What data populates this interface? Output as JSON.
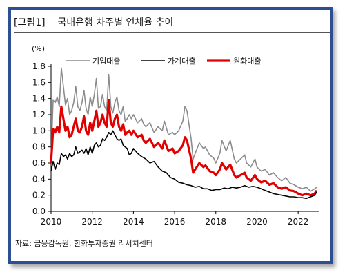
{
  "header": {
    "figure_tag": "[그림1]",
    "title": "국내은행 차주별 연체율 추이"
  },
  "source": "자료: 금융감독원, 한화투자증권 리서치센터",
  "chart_data": {
    "type": "line",
    "title": "국내은행 차주별 연체율 추이",
    "unit_label": "(%)",
    "xlim": [
      2010,
      2023
    ],
    "ylim": [
      0.0,
      1.8
    ],
    "x_ticks": [
      2010,
      2012,
      2014,
      2016,
      2018,
      2020,
      2022
    ],
    "y_ticks": [
      "0.0",
      "0.2",
      "0.4",
      "0.6",
      "0.8",
      "1.0",
      "1.2",
      "1.4",
      "1.6",
      "1.8"
    ],
    "grid": false,
    "legend_position": "top",
    "series": [
      {
        "name": "기업대출",
        "color": "#8c8c8c",
        "x": [
          2010.0,
          2010.1,
          2010.2,
          2010.3,
          2010.4,
          2010.5,
          2010.6,
          2010.7,
          2010.8,
          2010.9,
          2011.0,
          2011.1,
          2011.2,
          2011.3,
          2011.4,
          2011.5,
          2011.6,
          2011.7,
          2011.8,
          2011.9,
          2012.0,
          2012.1,
          2012.2,
          2012.3,
          2012.4,
          2012.5,
          2012.6,
          2012.7,
          2012.8,
          2012.9,
          2013.0,
          2013.1,
          2013.2,
          2013.3,
          2013.4,
          2013.5,
          2013.6,
          2013.7,
          2013.8,
          2013.9,
          2014.0,
          2014.2,
          2014.4,
          2014.5,
          2014.6,
          2014.8,
          2015.0,
          2015.2,
          2015.4,
          2015.5,
          2015.7,
          2015.9,
          2016.0,
          2016.2,
          2016.4,
          2016.5,
          2016.6,
          2016.8,
          2016.9,
          2017.0,
          2017.2,
          2017.4,
          2017.5,
          2017.7,
          2017.9,
          2018.0,
          2018.2,
          2018.3,
          2018.5,
          2018.7,
          2018.9,
          2019.0,
          2019.2,
          2019.4,
          2019.5,
          2019.7,
          2019.9,
          2020.0,
          2020.2,
          2020.4,
          2020.6,
          2020.8,
          2021.0,
          2021.2,
          2021.4,
          2021.6,
          2021.8,
          2022.0,
          2022.2,
          2022.4,
          2022.6,
          2022.8,
          2022.9
        ],
        "y": [
          0.65,
          1.38,
          1.35,
          1.42,
          1.3,
          1.78,
          1.55,
          1.32,
          1.4,
          1.2,
          1.25,
          1.35,
          1.55,
          1.3,
          1.25,
          1.35,
          1.5,
          1.28,
          1.2,
          1.42,
          1.3,
          1.45,
          1.65,
          1.28,
          1.3,
          1.45,
          1.3,
          1.25,
          1.7,
          1.3,
          1.22,
          1.35,
          1.42,
          1.25,
          1.2,
          1.3,
          1.12,
          1.15,
          1.2,
          1.15,
          1.2,
          1.1,
          1.15,
          1.08,
          1.05,
          1.1,
          0.98,
          1.05,
          1.0,
          1.12,
          0.95,
          0.98,
          0.95,
          1.0,
          1.12,
          1.3,
          1.25,
          0.9,
          0.65,
          0.72,
          0.85,
          0.78,
          0.8,
          0.7,
          0.66,
          0.6,
          0.72,
          0.88,
          0.75,
          0.88,
          0.65,
          0.6,
          0.65,
          0.7,
          0.6,
          0.55,
          0.65,
          0.55,
          0.5,
          0.52,
          0.45,
          0.48,
          0.42,
          0.38,
          0.42,
          0.35,
          0.33,
          0.3,
          0.28,
          0.3,
          0.25,
          0.28,
          0.3
        ]
      },
      {
        "name": "가계대출",
        "color": "#000000",
        "x": [
          2010.0,
          2010.1,
          2010.2,
          2010.3,
          2010.4,
          2010.5,
          2010.6,
          2010.7,
          2010.8,
          2010.9,
          2011.0,
          2011.1,
          2011.2,
          2011.3,
          2011.4,
          2011.5,
          2011.6,
          2011.7,
          2011.8,
          2011.9,
          2012.0,
          2012.1,
          2012.2,
          2012.3,
          2012.4,
          2012.5,
          2012.6,
          2012.7,
          2012.8,
          2012.9,
          2013.0,
          2013.1,
          2013.2,
          2013.3,
          2013.4,
          2013.5,
          2013.6,
          2013.7,
          2013.8,
          2013.9,
          2014.0,
          2014.2,
          2014.4,
          2014.6,
          2014.8,
          2015.0,
          2015.2,
          2015.4,
          2015.6,
          2015.8,
          2016.0,
          2016.2,
          2016.4,
          2016.6,
          2016.8,
          2017.0,
          2017.2,
          2017.4,
          2017.6,
          2017.8,
          2018.0,
          2018.2,
          2018.4,
          2018.6,
          2018.8,
          2019.0,
          2019.2,
          2019.4,
          2019.6,
          2019.8,
          2020.0,
          2020.2,
          2020.4,
          2020.6,
          2020.8,
          2021.0,
          2021.2,
          2021.4,
          2021.6,
          2021.8,
          2022.0,
          2022.2,
          2022.4,
          2022.6,
          2022.8,
          2022.9
        ],
        "y": [
          0.5,
          0.62,
          0.52,
          0.6,
          0.58,
          0.72,
          0.68,
          0.7,
          0.65,
          0.72,
          0.68,
          0.7,
          0.8,
          0.72,
          0.74,
          0.76,
          0.72,
          0.78,
          0.7,
          0.8,
          0.72,
          0.82,
          0.85,
          0.8,
          0.82,
          0.9,
          0.88,
          0.92,
          0.98,
          0.95,
          1.0,
          0.95,
          0.9,
          0.88,
          0.9,
          0.82,
          0.8,
          0.78,
          0.7,
          0.72,
          0.78,
          0.72,
          0.68,
          0.65,
          0.6,
          0.62,
          0.55,
          0.5,
          0.48,
          0.42,
          0.4,
          0.36,
          0.35,
          0.33,
          0.32,
          0.3,
          0.31,
          0.28,
          0.28,
          0.26,
          0.27,
          0.27,
          0.29,
          0.28,
          0.3,
          0.29,
          0.3,
          0.32,
          0.3,
          0.31,
          0.3,
          0.28,
          0.26,
          0.24,
          0.22,
          0.21,
          0.2,
          0.19,
          0.18,
          0.18,
          0.17,
          0.17,
          0.16,
          0.18,
          0.2,
          0.24
        ]
      },
      {
        "name": "원화대출",
        "color": "#e10000",
        "x": [
          2010.0,
          2010.1,
          2010.2,
          2010.3,
          2010.4,
          2010.5,
          2010.6,
          2010.7,
          2010.8,
          2010.9,
          2011.0,
          2011.1,
          2011.2,
          2011.3,
          2011.4,
          2011.5,
          2011.6,
          2011.7,
          2011.8,
          2011.9,
          2012.0,
          2012.1,
          2012.2,
          2012.3,
          2012.4,
          2012.5,
          2012.6,
          2012.7,
          2012.8,
          2012.9,
          2013.0,
          2013.1,
          2013.2,
          2013.3,
          2013.4,
          2013.5,
          2013.6,
          2013.7,
          2013.8,
          2013.9,
          2014.0,
          2014.2,
          2014.4,
          2014.5,
          2014.6,
          2014.8,
          2015.0,
          2015.2,
          2015.4,
          2015.5,
          2015.7,
          2015.9,
          2016.0,
          2016.2,
          2016.4,
          2016.5,
          2016.6,
          2016.8,
          2016.9,
          2017.0,
          2017.2,
          2017.4,
          2017.5,
          2017.7,
          2017.9,
          2018.0,
          2018.2,
          2018.3,
          2018.5,
          2018.7,
          2018.9,
          2019.0,
          2019.2,
          2019.4,
          2019.5,
          2019.7,
          2019.9,
          2020.0,
          2020.2,
          2020.4,
          2020.6,
          2020.8,
          2021.0,
          2021.2,
          2021.4,
          2021.6,
          2021.8,
          2022.0,
          2022.2,
          2022.4,
          2022.6,
          2022.8,
          2022.9
        ],
        "y": [
          0.6,
          1.02,
          0.98,
          1.05,
          0.98,
          1.3,
          1.15,
          1.0,
          1.05,
          0.92,
          0.95,
          1.05,
          1.15,
          1.0,
          0.98,
          1.05,
          1.18,
          1.0,
          0.95,
          1.1,
          1.0,
          1.12,
          1.25,
          1.05,
          1.1,
          1.2,
          1.1,
          1.05,
          1.38,
          1.1,
          1.05,
          1.15,
          1.2,
          1.05,
          1.0,
          1.08,
          0.95,
          0.98,
          1.0,
          0.95,
          1.0,
          0.92,
          0.95,
          0.88,
          0.85,
          0.9,
          0.8,
          0.85,
          0.78,
          0.88,
          0.75,
          0.78,
          0.72,
          0.75,
          0.82,
          0.92,
          0.88,
          0.65,
          0.48,
          0.52,
          0.6,
          0.55,
          0.57,
          0.5,
          0.48,
          0.45,
          0.52,
          0.6,
          0.52,
          0.58,
          0.45,
          0.42,
          0.45,
          0.48,
          0.42,
          0.38,
          0.45,
          0.4,
          0.36,
          0.38,
          0.33,
          0.35,
          0.3,
          0.28,
          0.3,
          0.26,
          0.25,
          0.22,
          0.2,
          0.22,
          0.2,
          0.22,
          0.26
        ]
      }
    ]
  }
}
